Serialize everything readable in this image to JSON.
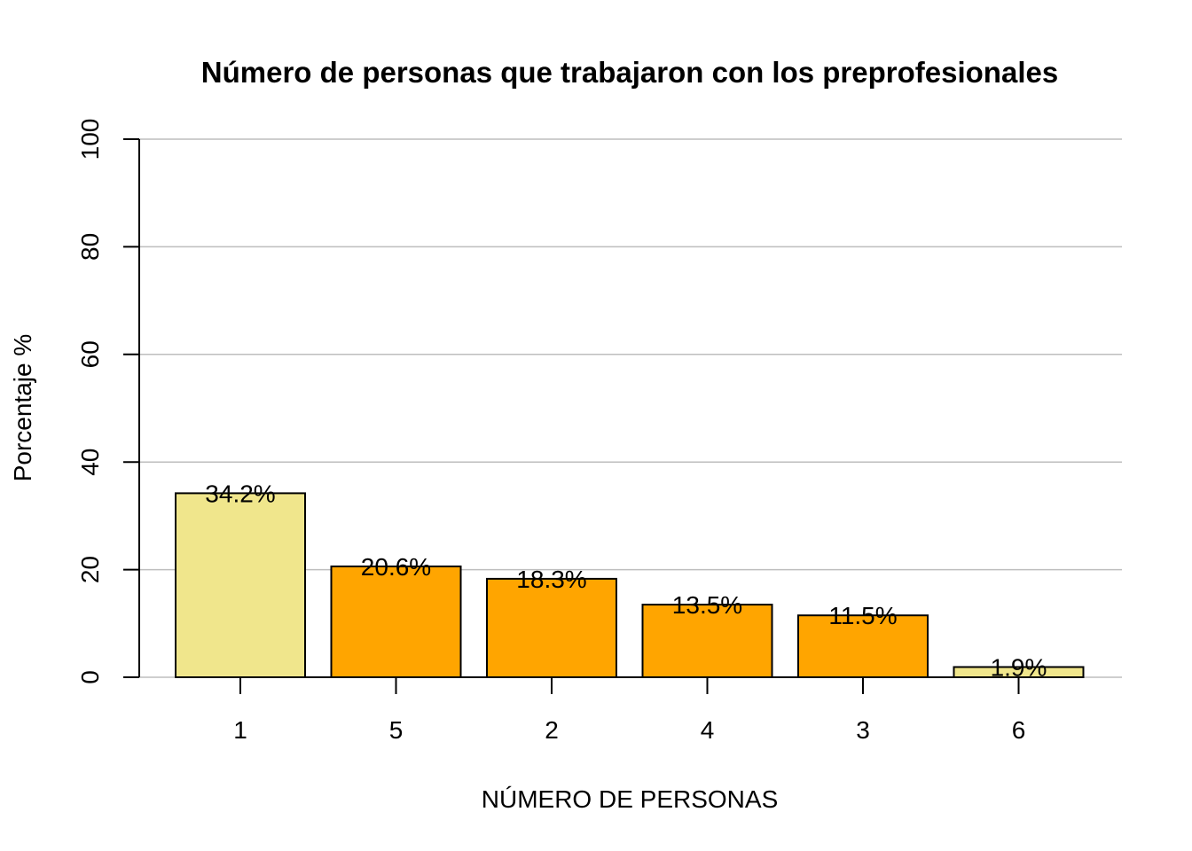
{
  "chart_data": {
    "type": "bar",
    "title": "Número de personas que trabajaron con los preprofesionales",
    "xlabel": "NÚMERO DE PERSONAS",
    "ylabel": "Porcentaje %",
    "categories": [
      "1",
      "5",
      "2",
      "4",
      "3",
      "6"
    ],
    "values": [
      34.2,
      20.6,
      18.3,
      13.5,
      11.5,
      1.9
    ],
    "data_labels": [
      "34.2%",
      "20.6%",
      "18.3%",
      "13.5%",
      "11.5%",
      "1.9%"
    ],
    "bar_colors": [
      "#f0e68c",
      "#ffa500",
      "#ffa500",
      "#ffa500",
      "#ffa500",
      "#f0e68c"
    ],
    "ylim": [
      0,
      100
    ],
    "yticks": [
      0,
      20,
      40,
      60,
      80,
      100
    ],
    "ytick_labels": [
      "0",
      "20",
      "40",
      "60",
      "80",
      "100"
    ],
    "grid": true,
    "grid_color": "#bebebe"
  }
}
